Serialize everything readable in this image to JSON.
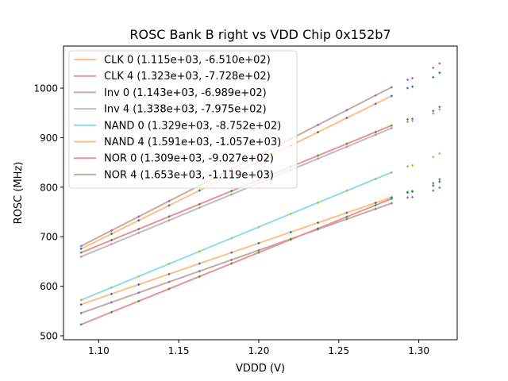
{
  "chart_data": {
    "type": "line",
    "title": "ROSC Bank B right vs VDD Chip 0x152b7",
    "xlabel": "VDDD (V)",
    "ylabel": "ROSC (MHz)",
    "xlim": [
      1.078,
      1.324
    ],
    "ylim": [
      492,
      1085
    ],
    "xticks": [
      1.1,
      1.15,
      1.2,
      1.25,
      1.3
    ],
    "xtick_labels": [
      "1.10",
      "1.15",
      "1.20",
      "1.25",
      "1.30"
    ],
    "yticks": [
      500,
      600,
      700,
      800,
      900,
      1000
    ],
    "ytick_labels": [
      "500",
      "600",
      "700",
      "800",
      "900",
      "1000"
    ],
    "grid": false,
    "legend_position": "top-left",
    "fit_x": [
      1.089,
      1.108,
      1.125,
      1.144,
      1.163,
      1.183,
      1.2,
      1.22,
      1.237,
      1.255,
      1.273,
      1.283
    ],
    "series": [
      {
        "name": "CLK 0",
        "legend": "CLK 0 (1.115e+03, -6.510e+02)",
        "slope": 1115,
        "intercept": -651.0,
        "line_color": "#ffbf86",
        "marker_color": "#1f77b4",
        "extra_x": [
          1.293,
          1.296,
          1.309,
          1.313
        ],
        "extra_y": [
          789,
          791,
          803,
          811
        ]
      },
      {
        "name": "CLK 4",
        "legend": "CLK 4 (1.323e+03, -7.728e+02)",
        "slope": 1323,
        "intercept": -772.8,
        "line_color": "#ea9393",
        "marker_color": "#2ca02c",
        "extra_x": [
          1.293,
          1.296,
          1.309,
          1.313
        ],
        "extra_y": [
          937,
          938,
          954,
          962
        ]
      },
      {
        "name": "Inv 0",
        "legend": "Inv 0 (1.143e+03, -6.989e+02)",
        "slope": 1143,
        "intercept": -698.9,
        "line_color": "#c5aaa5",
        "marker_color": "#9467bd",
        "extra_x": [
          1.293,
          1.296,
          1.309,
          1.313
        ],
        "extra_y": [
          779,
          780,
          793,
          799
        ]
      },
      {
        "name": "Inv 4",
        "legend": "Inv 4 (1.338e+03, -7.975e+02)",
        "slope": 1338,
        "intercept": -797.5,
        "line_color": "#bfbfbf",
        "marker_color": "#e377c2",
        "extra_x": [
          1.293,
          1.296,
          1.309,
          1.313
        ],
        "extra_y": [
          932,
          934,
          949,
          957
        ]
      },
      {
        "name": "NAND 0",
        "legend": "NAND 0 (1.329e+03, -8.752e+02)",
        "slope": 1329,
        "intercept": -875.2,
        "line_color": "#8bdee7",
        "marker_color": "#bcbd22",
        "extra_x": [
          1.293,
          1.296,
          1.309,
          1.313
        ],
        "extra_y": [
          842,
          844,
          861,
          868
        ]
      },
      {
        "name": "NAND 4",
        "legend": "NAND 4 (1.591e+03, -1.057e+03)",
        "slope": 1591,
        "intercept": -1057.0,
        "line_color": "#ffbf86",
        "marker_color": "#1f77b4",
        "extra_x": [
          1.293,
          1.296,
          1.309,
          1.313
        ],
        "extra_y": [
          1000,
          1003,
          1022,
          1031
        ]
      },
      {
        "name": "NOR 0",
        "legend": "NOR 0 (1.309e+03, -9.027e+02)",
        "slope": 1309,
        "intercept": -902.7,
        "line_color": "#ea9393",
        "marker_color": "#2ca02c",
        "extra_x": [
          1.293,
          1.296,
          1.309,
          1.313
        ],
        "extra_y": [
          790,
          792,
          808,
          816
        ]
      },
      {
        "name": "NOR 4",
        "legend": "NOR 4 (1.653e+03, -1.119e+03)",
        "slope": 1653,
        "intercept": -1119.0,
        "line_color": "#c5aaa5",
        "marker_color": "#9467bd",
        "extra_x": [
          1.293,
          1.296,
          1.309,
          1.313
        ],
        "extra_y": [
          1017,
          1020,
          1041,
          1050
        ]
      }
    ]
  }
}
